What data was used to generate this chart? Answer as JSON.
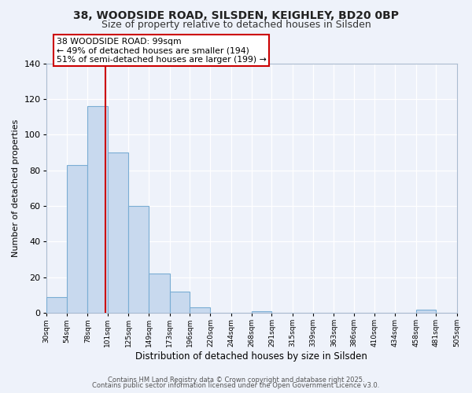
{
  "title1": "38, WOODSIDE ROAD, SILSDEN, KEIGHLEY, BD20 0BP",
  "title2": "Size of property relative to detached houses in Silsden",
  "xlabel": "Distribution of detached houses by size in Silsden",
  "ylabel": "Number of detached properties",
  "bar_color": "#c8d9ee",
  "bar_edge_color": "#7aadd4",
  "background_color": "#eef2fa",
  "plot_bg_color": "#eef2fa",
  "bins": [
    30,
    54,
    78,
    101,
    125,
    149,
    173,
    196,
    220,
    244,
    268,
    291,
    315,
    339,
    363,
    386,
    410,
    434,
    458,
    481,
    505
  ],
  "bin_labels": [
    "30sqm",
    "54sqm",
    "78sqm",
    "101sqm",
    "125sqm",
    "149sqm",
    "173sqm",
    "196sqm",
    "220sqm",
    "244sqm",
    "268sqm",
    "291sqm",
    "315sqm",
    "339sqm",
    "363sqm",
    "386sqm",
    "410sqm",
    "434sqm",
    "458sqm",
    "481sqm",
    "505sqm"
  ],
  "values": [
    9,
    83,
    116,
    90,
    60,
    22,
    12,
    3,
    0,
    0,
    1,
    0,
    0,
    0,
    0,
    0,
    0,
    0,
    2,
    0
  ],
  "property_size": 99,
  "annotation_title": "38 WOODSIDE ROAD: 99sqm",
  "annotation_line1": "← 49% of detached houses are smaller (194)",
  "annotation_line2": "51% of semi-detached houses are larger (199) →",
  "vline_color": "#cc0000",
  "annotation_box_facecolor": "#ffffff",
  "annotation_box_edgecolor": "#cc0000",
  "ylim": [
    0,
    140
  ],
  "yticks": [
    0,
    20,
    40,
    60,
    80,
    100,
    120,
    140
  ],
  "grid_color": "#ffffff",
  "spine_color": "#aabbd0",
  "footer1": "Contains HM Land Registry data © Crown copyright and database right 2025.",
  "footer2": "Contains public sector information licensed under the Open Government Licence v3.0."
}
